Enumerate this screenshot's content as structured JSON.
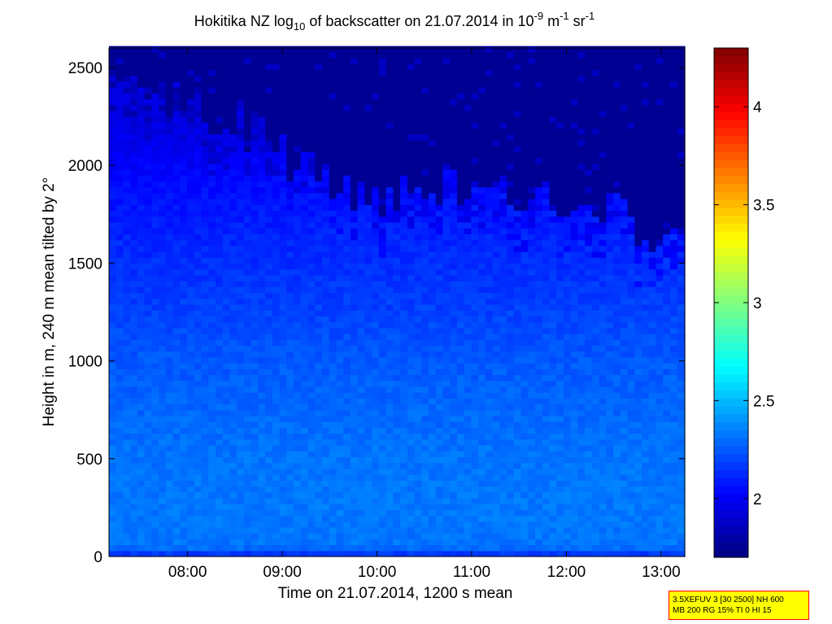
{
  "chart_data": {
    "type": "heatmap",
    "title": {
      "prefix": "Hokitika NZ log",
      "sub": "10",
      "mid": " of backscatter on 21.07.2014 in 10",
      "sup1": "-9",
      "mid2": " m",
      "sup2": "-1",
      "mid3": " sr",
      "sup3": "-1"
    },
    "xlabel": "Time on 21.07.2014, 1200 s mean",
    "ylabel": "Height in m, 240 m mean tilted by 2°",
    "x_ticks": [
      "08:00",
      "09:00",
      "10:00",
      "11:00",
      "12:00",
      "13:00"
    ],
    "x_tick_hours": [
      8,
      9,
      10,
      11,
      12,
      13
    ],
    "xlim_hours": [
      7.17,
      13.25
    ],
    "y_ticks": [
      0,
      500,
      1000,
      1500,
      2000,
      2500
    ],
    "ylim": [
      0,
      2600
    ],
    "colorbar": {
      "ticks": [
        2,
        2.5,
        3,
        3.5,
        4
      ],
      "range": [
        1.7,
        4.3
      ],
      "colormap": "jet"
    },
    "cloud_top_profile": {
      "hours": [
        7.17,
        7.5,
        8.0,
        8.5,
        9.0,
        9.5,
        10.0,
        10.5,
        11.0,
        11.5,
        12.0,
        12.5,
        13.0,
        13.25
      ],
      "height_m": [
        2550,
        2450,
        2300,
        2250,
        2050,
        1950,
        1800,
        1900,
        1850,
        1800,
        1800,
        1750,
        1600,
        1550
      ]
    },
    "value_profile": {
      "height_m": [
        0,
        50,
        200,
        500,
        800,
        1000,
        1300,
        1600,
        1900,
        2200,
        2600
      ],
      "log_backscatter": [
        2.1,
        2.32,
        2.33,
        2.32,
        2.28,
        2.25,
        2.18,
        2.12,
        2.05,
        1.95,
        1.9
      ],
      "above_top": 1.75
    }
  },
  "param_box": {
    "line1": "3.5XEFUV 3 [30 2500] NH 600",
    "line2": "MB 200 RG 15% TI 0 HI 15",
    "background": "#ffff00",
    "border": "#ff0000"
  }
}
